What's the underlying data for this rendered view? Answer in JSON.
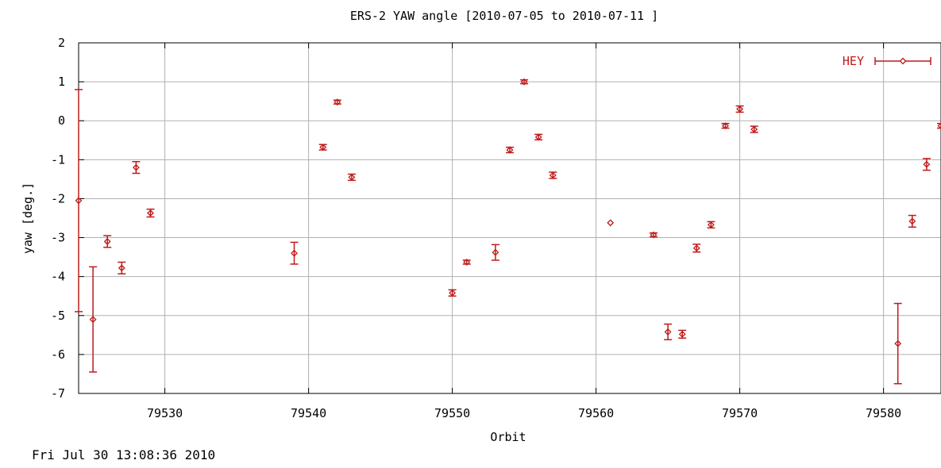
{
  "timestamp": "Fri Jul 30 13:08:36 2010",
  "colors": {
    "series": "#c01a1a",
    "grid": "#b0b0b0",
    "axis": "#000000"
  },
  "chart_data": {
    "type": "scatter",
    "title": "ERS-2 YAW angle [2010-07-05 to 2010-07-11 ]",
    "xlabel": "Orbit",
    "ylabel": "yaw [deg.]",
    "xlim": [
      79524,
      79584
    ],
    "ylim": [
      -7,
      2
    ],
    "xticks": [
      79530,
      79540,
      79550,
      79560,
      79570,
      79580
    ],
    "yticks": [
      2,
      1,
      0,
      -1,
      -2,
      -3,
      -4,
      -5,
      -6,
      -7
    ],
    "grid": true,
    "legend_position": "top-right",
    "series": [
      {
        "name": "HEY",
        "points": [
          {
            "x": 79524.0,
            "y": -2.05,
            "err": 2.85
          },
          {
            "x": 79525.0,
            "y": -5.1,
            "err": 1.35
          },
          {
            "x": 79526.0,
            "y": -3.1,
            "err": 0.15
          },
          {
            "x": 79527.0,
            "y": -3.78,
            "err": 0.15
          },
          {
            "x": 79528.0,
            "y": -1.2,
            "err": 0.15
          },
          {
            "x": 79529.0,
            "y": -2.37,
            "err": 0.1
          },
          {
            "x": 79539.0,
            "y": -3.4,
            "err": 0.28
          },
          {
            "x": 79541.0,
            "y": -0.68,
            "err": 0.07
          },
          {
            "x": 79542.0,
            "y": 0.48,
            "err": 0.05
          },
          {
            "x": 79543.0,
            "y": -1.45,
            "err": 0.08
          },
          {
            "x": 79550.0,
            "y": -4.42,
            "err": 0.08
          },
          {
            "x": 79551.0,
            "y": -3.63,
            "err": 0.05
          },
          {
            "x": 79553.0,
            "y": -3.38,
            "err": 0.2
          },
          {
            "x": 79554.0,
            "y": -0.75,
            "err": 0.07
          },
          {
            "x": 79555.0,
            "y": 1.0,
            "err": 0.05
          },
          {
            "x": 79556.0,
            "y": -0.42,
            "err": 0.07
          },
          {
            "x": 79557.0,
            "y": -1.4,
            "err": 0.08
          },
          {
            "x": 79561.0,
            "y": -2.62,
            "err": 0.0
          },
          {
            "x": 79564.0,
            "y": -2.93,
            "err": 0.05
          },
          {
            "x": 79565.0,
            "y": -5.42,
            "err": 0.2
          },
          {
            "x": 79566.0,
            "y": -5.48,
            "err": 0.1
          },
          {
            "x": 79567.0,
            "y": -3.27,
            "err": 0.1
          },
          {
            "x": 79568.0,
            "y": -2.67,
            "err": 0.08
          },
          {
            "x": 79569.0,
            "y": -0.13,
            "err": 0.06
          },
          {
            "x": 79570.0,
            "y": 0.3,
            "err": 0.08
          },
          {
            "x": 79571.0,
            "y": -0.22,
            "err": 0.08
          },
          {
            "x": 79581.0,
            "y": -5.72,
            "err": 1.03
          },
          {
            "x": 79582.0,
            "y": -2.58,
            "err": 0.15
          },
          {
            "x": 79583.0,
            "y": -1.12,
            "err": 0.15
          },
          {
            "x": 79584.0,
            "y": -0.13,
            "err": 0.06
          }
        ]
      }
    ]
  }
}
